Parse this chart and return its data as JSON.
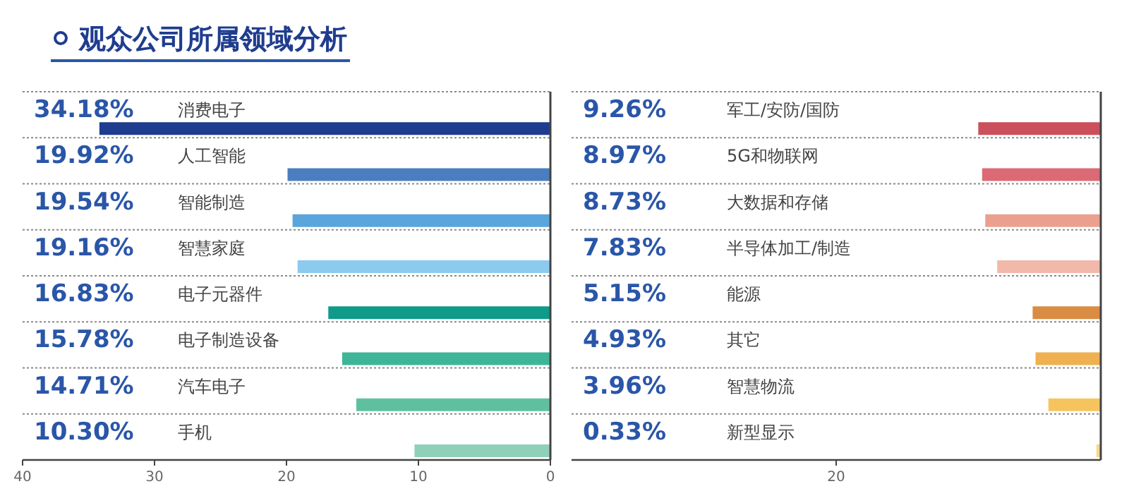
{
  "chart_data": [
    {
      "type": "bar",
      "orientation": "horizontal",
      "title": "观众公司所属领域分析",
      "categories": [
        "消费电子",
        "人工智能",
        "智能制造",
        "智慧家庭",
        "电子元器件",
        "电子制造设备",
        "汽车电子",
        "手机"
      ],
      "values": [
        34.18,
        19.92,
        19.54,
        19.16,
        16.83,
        15.78,
        14.71,
        10.3
      ],
      "value_labels": [
        "34.18%",
        "19.92%",
        "19.54%",
        "19.16%",
        "16.83%",
        "15.78%",
        "14.71%",
        "10.30%"
      ],
      "colors": [
        "#1f3d8f",
        "#4a7ec0",
        "#5aa5dc",
        "#8ccbee",
        "#0f9a8a",
        "#3fb597",
        "#5fc0a0",
        "#8ed1b8"
      ],
      "xlim": [
        40,
        0
      ],
      "xticks": [
        40,
        30,
        20,
        10,
        0
      ]
    },
    {
      "type": "bar",
      "orientation": "horizontal",
      "categories": [
        "军工/安防/国防",
        "5G和物联网",
        "大数据和存储",
        "半导体加工/制造",
        "能源",
        "其它",
        "智慧物流",
        "新型显示"
      ],
      "values": [
        9.26,
        8.97,
        8.73,
        7.83,
        5.15,
        4.93,
        3.96,
        0.33
      ],
      "value_labels": [
        "9.26%",
        "8.97%",
        "8.73%",
        "7.83%",
        "5.15%",
        "4.93%",
        "3.96%",
        "0.33%"
      ],
      "colors": [
        "#cc4f5c",
        "#dc6a75",
        "#eba08f",
        "#f2b9ab",
        "#d98c42",
        "#eeb050",
        "#f6c45f",
        "#f9d98a"
      ],
      "xlim": [
        40,
        0
      ],
      "xticks": [
        20
      ]
    }
  ]
}
